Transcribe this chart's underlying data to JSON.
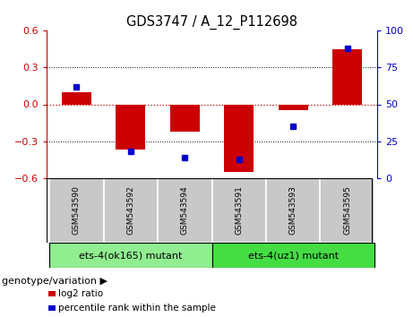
{
  "title": "GDS3747 / A_12_P112698",
  "samples": [
    "GSM543590",
    "GSM543592",
    "GSM543594",
    "GSM543591",
    "GSM543593",
    "GSM543595"
  ],
  "log2_ratios": [
    0.1,
    -0.37,
    -0.22,
    -0.55,
    -0.05,
    0.45
  ],
  "percentile_ranks": [
    62,
    18,
    14,
    13,
    35,
    88
  ],
  "bar_color": "#cc0000",
  "dot_color": "#0000cc",
  "ylim_left": [
    -0.6,
    0.6
  ],
  "ylim_right": [
    0,
    100
  ],
  "yticks_left": [
    -0.6,
    -0.3,
    0.0,
    0.3,
    0.6
  ],
  "yticks_right": [
    0,
    25,
    50,
    75,
    100
  ],
  "groups": [
    {
      "label": "ets-4(ok165) mutant",
      "indices": [
        0,
        1,
        2
      ],
      "color": "#90ee90"
    },
    {
      "label": "ets-4(uz1) mutant",
      "indices": [
        3,
        4,
        5
      ],
      "color": "#44dd44"
    }
  ],
  "bar_width": 0.55,
  "title_fontsize": 10.5,
  "left_tick_color": "#cc0000",
  "right_tick_color": "#0000cc",
  "legend_log2_label": "log2 ratio",
  "legend_pct_label": "percentile rank within the sample",
  "genotype_label": "genotype/variation",
  "sample_box_color": "#c8c8c8",
  "tick_fontsize": 8,
  "sample_fontsize": 6.5,
  "group_fontsize": 8,
  "legend_fontsize": 7.5,
  "genotype_fontsize": 8
}
